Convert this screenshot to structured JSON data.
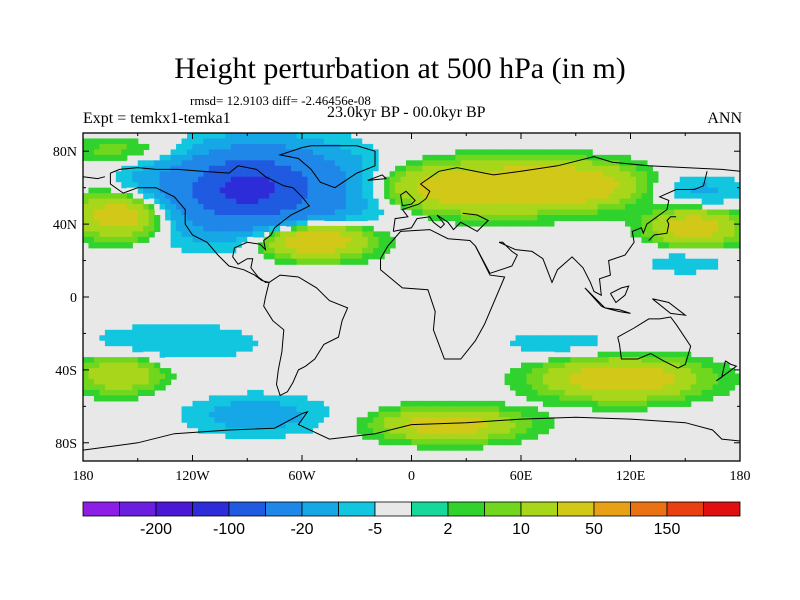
{
  "header": {
    "title": "Height perturbation at 500 hPa (in m)",
    "stats": "rmsd= 12.9103 diff= -2.46456e-08",
    "left_label": "Expt = temkx1-temka1",
    "center_label": "23.0kyr BP - 00.0kyr BP",
    "right_label": "ANN"
  },
  "chart_data": {
    "type": "heatmap",
    "title": "Height perturbation at 500 hPa (in m)",
    "variable": "500 hPa geopotential height difference",
    "units": "m",
    "xlabel": "",
    "ylabel": "",
    "xlim": [
      -180,
      180
    ],
    "ylim": [
      -90,
      90
    ],
    "x_ticks": [
      {
        "value": -180,
        "label": "180"
      },
      {
        "value": -120,
        "label": "120W"
      },
      {
        "value": -60,
        "label": "60W"
      },
      {
        "value": 0,
        "label": "0"
      },
      {
        "value": 60,
        "label": "60E"
      },
      {
        "value": 120,
        "label": "120E"
      },
      {
        "value": 180,
        "label": "180"
      }
    ],
    "y_ticks": [
      {
        "value": 80,
        "label": "80N"
      },
      {
        "value": 40,
        "label": "40N"
      },
      {
        "value": 0,
        "label": "0"
      },
      {
        "value": -40,
        "label": "40S"
      },
      {
        "value": -80,
        "label": "80S"
      }
    ],
    "levels": [
      -300,
      -200,
      -150,
      -100,
      -50,
      -20,
      -10,
      -5,
      -2,
      2,
      5,
      10,
      20,
      50,
      100,
      150,
      200
    ],
    "colorbar_labels": [
      {
        "value": -200,
        "label": "-200"
      },
      {
        "value": -100,
        "label": "-100"
      },
      {
        "value": -20,
        "label": "-20"
      },
      {
        "value": -5,
        "label": "-5"
      },
      {
        "value": 2,
        "label": "2"
      },
      {
        "value": 10,
        "label": "10"
      },
      {
        "value": 50,
        "label": "50"
      },
      {
        "value": 150,
        "label": "150"
      }
    ],
    "colors": [
      "#8c1ee6",
      "#6a1fe0",
      "#4a18d4",
      "#2d2cd8",
      "#1f5ae0",
      "#1f87e8",
      "#16a8e6",
      "#12c6e0",
      "#e8e8e8",
      "#16d89a",
      "#30d22e",
      "#70d61e",
      "#a8d61a",
      "#d2c818",
      "#e8a014",
      "#ea7212",
      "#e84010",
      "#e01010"
    ],
    "features": [
      {
        "name": "North America / N Atlantic low",
        "lon": -85,
        "lat": 58,
        "value": -60,
        "rlon": 55,
        "rlat": 24
      },
      {
        "name": "Canada core",
        "lon": -90,
        "lat": 60,
        "value": -70,
        "rlon": 22,
        "rlat": 12
      },
      {
        "name": "Arctic NW",
        "lon": -150,
        "lat": 80,
        "value": 10,
        "rlon": 40,
        "rlat": 8
      },
      {
        "name": "Europe / Asia high",
        "lon": 40,
        "lat": 60,
        "value": 40,
        "rlon": 55,
        "rlat": 12
      },
      {
        "name": "Central Asia high",
        "lon": 90,
        "lat": 62,
        "value": 25,
        "rlon": 30,
        "rlat": 10
      },
      {
        "name": "Atlantic subtropical high",
        "lon": -55,
        "lat": 32,
        "value": 45,
        "rlon": 30,
        "rlat": 10
      },
      {
        "name": "N Pacific high",
        "lon": -158,
        "lat": 45,
        "value": 35,
        "rlon": 25,
        "rlat": 12
      },
      {
        "name": "NW Pacific high",
        "lon": 155,
        "lat": 38,
        "value": 30,
        "rlon": 22,
        "rlat": 10
      },
      {
        "name": "N Pacific low west",
        "lon": 160,
        "lat": 58,
        "value": -12,
        "rlon": 25,
        "rlat": 10
      },
      {
        "name": "East Asia low",
        "lon": 150,
        "lat": 20,
        "value": -8,
        "rlon": 30,
        "rlat": 10
      },
      {
        "name": "South Pacific low",
        "lon": -130,
        "lat": -25,
        "value": -10,
        "rlon": 55,
        "rlat": 12
      },
      {
        "name": "S Atlantic / Indian high",
        "lon": 115,
        "lat": -45,
        "value": 35,
        "rlon": 38,
        "rlat": 10
      },
      {
        "name": "Southern high Atlantic",
        "lon": 20,
        "lat": -70,
        "value": 30,
        "rlon": 35,
        "rlat": 8
      },
      {
        "name": "South Pacific high",
        "lon": -160,
        "lat": -42,
        "value": 20,
        "rlon": 22,
        "rlat": 10
      },
      {
        "name": "Southern Ocean low",
        "lon": -85,
        "lat": -65,
        "value": -15,
        "rlon": 40,
        "rlat": 12
      },
      {
        "name": "Southern Indian low",
        "lon": 80,
        "lat": -25,
        "value": -8,
        "rlon": 40,
        "rlat": 8
      }
    ]
  }
}
